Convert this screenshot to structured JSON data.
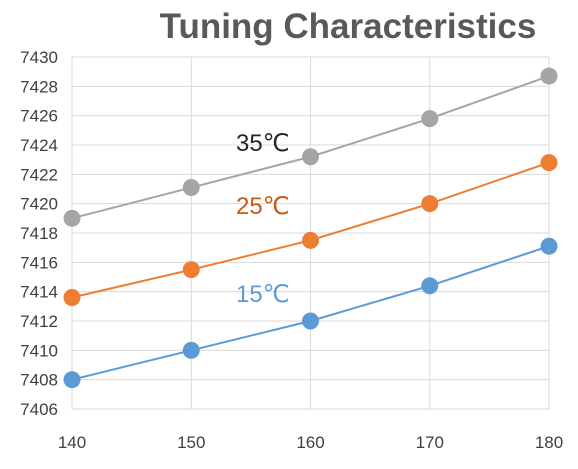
{
  "chart_data": {
    "type": "line",
    "title": "Tuning Characteristics",
    "xlabel": "",
    "ylabel": "",
    "x": [
      140,
      150,
      160,
      170,
      180
    ],
    "xlim": [
      140,
      180
    ],
    "ylim": [
      7406,
      7430
    ],
    "yticks": [
      7406,
      7408,
      7410,
      7412,
      7414,
      7416,
      7418,
      7420,
      7422,
      7424,
      7426,
      7428,
      7430
    ],
    "grid": true,
    "legend": "inline labels",
    "series": [
      {
        "name": "35℃",
        "color": "#a5a5a5",
        "label_color": "#262626",
        "label_at": [
          156,
          7423.6
        ],
        "values": [
          7419.0,
          7421.1,
          7423.2,
          7425.8,
          7428.7
        ]
      },
      {
        "name": "25℃",
        "color": "#ed7d31",
        "label_color": "#c55a11",
        "label_at": [
          156,
          7419.3
        ],
        "values": [
          7413.6,
          7415.5,
          7417.5,
          7420.0,
          7422.8
        ]
      },
      {
        "name": "15℃",
        "color": "#5b9bd5",
        "label_color": "#5b9bd5",
        "label_at": [
          156,
          7413.3
        ],
        "values": [
          7408.0,
          7410.0,
          7412.0,
          7414.4,
          7417.1
        ]
      }
    ]
  }
}
